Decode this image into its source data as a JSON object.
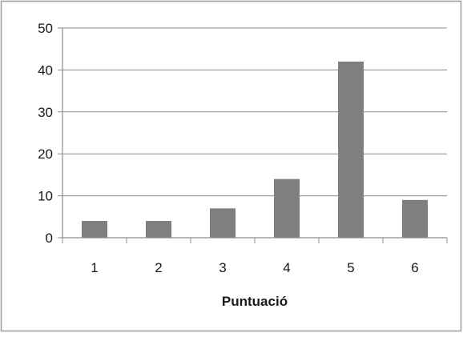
{
  "chart_data": {
    "type": "bar",
    "categories": [
      "1",
      "2",
      "3",
      "4",
      "5",
      "6"
    ],
    "values": [
      4,
      4,
      7,
      14,
      42,
      9
    ],
    "title": "",
    "xlabel": "Puntuació",
    "ylabel": "",
    "ylim": [
      0,
      50
    ],
    "yticks": [
      0,
      10,
      20,
      30,
      40,
      50
    ],
    "grid": "horizontal",
    "legend": "none",
    "colors": {
      "bar": "#7f7f7f",
      "grid": "#8c8c8c",
      "axis": "#8c8c8c",
      "frame": "#9a9a9a"
    }
  }
}
